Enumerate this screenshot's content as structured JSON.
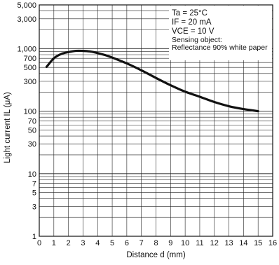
{
  "chart_data": {
    "type": "line",
    "title": "",
    "xlabel": "Distance d (mm)",
    "ylabel": "Light current IL (μA)",
    "x_scale": "linear",
    "y_scale": "log",
    "xlim": [
      0,
      16
    ],
    "ylim": [
      1,
      5000
    ],
    "x_ticks": [
      0,
      1,
      2,
      3,
      4,
      5,
      6,
      7,
      8,
      9,
      10,
      11,
      12,
      13,
      14,
      15,
      16
    ],
    "x_tick_labels": [
      "0",
      "1",
      "2",
      "3",
      "4",
      "5",
      "6",
      "7",
      "8",
      "9",
      "10",
      "11",
      "12",
      "13",
      "14",
      "15",
      "16"
    ],
    "y_ticks": [
      1,
      3,
      5,
      7,
      10,
      30,
      50,
      70,
      100,
      300,
      500,
      700,
      1000,
      3000,
      5000
    ],
    "y_tick_labels": [
      "1",
      "3",
      "5",
      "7",
      "10",
      "30",
      "50",
      "70",
      "100",
      "300",
      "500",
      "700",
      "1,000",
      "3,000",
      "5,000"
    ],
    "grid": true,
    "conditions": {
      "position": "top-right",
      "ta": "Ta = 25°C",
      "if": "IF = 20 mA",
      "vce": "VCE = 10 V",
      "sensing_label": "Sensing object:",
      "sensing_value": "Reflectance 90% white paper"
    },
    "series": [
      {
        "x": [
          0.5,
          1,
          1.5,
          2,
          2.5,
          3,
          3.5,
          4,
          4.5,
          5,
          6,
          7,
          8,
          9,
          10,
          11,
          12,
          13,
          14,
          15
        ],
        "y": [
          510,
          700,
          820,
          880,
          920,
          920,
          900,
          850,
          790,
          720,
          580,
          450,
          340,
          260,
          205,
          170,
          140,
          120,
          108,
          100
        ]
      }
    ]
  }
}
